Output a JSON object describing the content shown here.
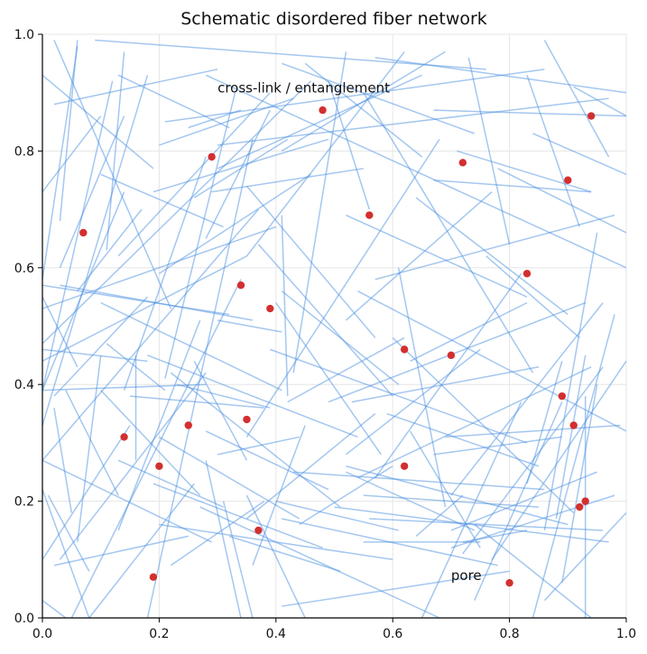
{
  "chart_data": {
    "type": "scatter",
    "title": "Schematic disordered fiber network",
    "xlabel": "",
    "ylabel": "",
    "xlim": [
      0,
      1
    ],
    "ylim": [
      0,
      1
    ],
    "grid": true,
    "x_ticks": [
      "0.0",
      "0.2",
      "0.4",
      "0.6",
      "0.8",
      "1.0"
    ],
    "y_ticks": [
      "0.0",
      "0.2",
      "0.4",
      "0.6",
      "0.8",
      "1.0"
    ],
    "annotations": [
      {
        "text": "cross-link / entanglement",
        "x": 0.3,
        "y": 0.9
      },
      {
        "text": "pore",
        "x": 0.7,
        "y": 0.065
      }
    ],
    "fiber_color": "#4a90e2",
    "node_color": "#d32f2f",
    "fibers": [
      [
        0.02,
        0.99,
        0.22,
        0.53
      ],
      [
        0.09,
        0.99,
        0.76,
        0.94
      ],
      [
        0.0,
        0.93,
        0.19,
        0.77
      ],
      [
        0.1,
        0.86,
        0.0,
        0.73
      ],
      [
        0.13,
        0.93,
        0.32,
        0.84
      ],
      [
        0.02,
        0.88,
        0.3,
        0.94
      ],
      [
        0.06,
        0.98,
        0.0,
        0.58
      ],
      [
        0.18,
        0.0,
        0.36,
        0.82
      ],
      [
        0.03,
        0.68,
        0.06,
        0.99
      ],
      [
        0.57,
        0.96,
        1.0,
        0.9
      ],
      [
        0.3,
        0.81,
        0.97,
        0.89
      ],
      [
        0.21,
        0.85,
        0.86,
        0.94
      ],
      [
        0.28,
        0.93,
        1.0,
        0.6
      ],
      [
        0.2,
        0.81,
        0.43,
        0.89
      ],
      [
        0.19,
        0.73,
        0.49,
        0.82
      ],
      [
        0.46,
        0.92,
        0.0,
        0.47
      ],
      [
        0.12,
        0.92,
        0.0,
        0.39
      ],
      [
        0.14,
        0.73,
        0.0,
        0.39
      ],
      [
        0.3,
        0.77,
        0.65,
        0.93
      ],
      [
        0.25,
        0.84,
        0.34,
        0.87
      ],
      [
        0.18,
        0.93,
        0.0,
        0.33
      ],
      [
        0.45,
        0.95,
        0.65,
        0.79
      ],
      [
        0.33,
        0.9,
        0.21,
        0.41
      ],
      [
        0.35,
        0.74,
        0.57,
        0.48
      ],
      [
        0.41,
        0.95,
        0.74,
        0.83
      ],
      [
        0.55,
        0.9,
        0.84,
        0.42
      ],
      [
        0.67,
        0.87,
        1.0,
        0.86
      ],
      [
        0.71,
        0.8,
        0.94,
        0.73
      ],
      [
        0.67,
        0.75,
        0.94,
        0.73
      ],
      [
        0.49,
        0.92,
        0.56,
        0.7
      ],
      [
        0.28,
        0.79,
        0.14,
        0.39
      ],
      [
        0.1,
        0.76,
        0.31,
        0.67
      ],
      [
        0.41,
        0.8,
        0.69,
        0.97
      ],
      [
        0.29,
        0.73,
        0.55,
        0.77
      ],
      [
        0.26,
        0.72,
        0.42,
        0.82
      ],
      [
        0.73,
        0.96,
        0.8,
        0.64
      ],
      [
        0.83,
        0.93,
        0.92,
        0.67
      ],
      [
        0.54,
        0.56,
        1.0,
        0.32
      ],
      [
        0.52,
        0.69,
        0.83,
        0.55
      ],
      [
        0.37,
        0.7,
        0.0,
        0.27
      ],
      [
        0.28,
        0.65,
        0.39,
        0.87
      ],
      [
        0.14,
        0.86,
        0.03,
        0.6
      ],
      [
        0.06,
        0.56,
        0.17,
        0.7
      ],
      [
        0.43,
        0.42,
        0.52,
        0.97
      ],
      [
        0.57,
        0.58,
        0.98,
        0.69
      ],
      [
        0.64,
        0.72,
        0.9,
        0.52
      ],
      [
        0.62,
        0.97,
        0.35,
        0.62
      ],
      [
        0.37,
        0.64,
        0.6,
        0.38
      ],
      [
        0.41,
        0.56,
        0.61,
        0.4
      ],
      [
        0.76,
        0.62,
        0.92,
        0.48
      ],
      [
        0.84,
        0.83,
        1.0,
        0.76
      ],
      [
        0.86,
        0.99,
        0.97,
        0.79
      ],
      [
        0.91,
        0.91,
        1.0,
        0.86
      ],
      [
        0.78,
        0.77,
        1.0,
        0.66
      ],
      [
        0.35,
        0.31,
        0.68,
        0.82
      ],
      [
        0.2,
        0.59,
        0.46,
        0.76
      ],
      [
        0.03,
        0.57,
        0.36,
        0.51
      ],
      [
        0.13,
        0.62,
        0.39,
        0.9
      ],
      [
        0.14,
        0.97,
        0.11,
        0.63
      ],
      [
        0.1,
        0.54,
        0.41,
        0.39
      ],
      [
        0.0,
        0.53,
        0.4,
        0.67
      ],
      [
        0.0,
        0.46,
        0.18,
        0.44
      ],
      [
        0.0,
        0.39,
        0.28,
        0.4
      ],
      [
        0.0,
        0.44,
        0.35,
        0.62
      ],
      [
        0.0,
        0.57,
        0.32,
        0.52
      ],
      [
        0.11,
        0.47,
        0.21,
        0.39
      ],
      [
        0.06,
        0.13,
        0.1,
        0.45
      ],
      [
        0.08,
        0.0,
        0.26,
        0.23
      ],
      [
        0.0,
        0.27,
        0.29,
        0.13
      ],
      [
        0.0,
        0.1,
        0.15,
        0.33
      ],
      [
        0.03,
        0.1,
        0.28,
        0.42
      ],
      [
        0.02,
        0.36,
        0.05,
        0.18
      ],
      [
        0.08,
        0.08,
        0.01,
        0.21
      ],
      [
        0.02,
        0.09,
        0.25,
        0.14
      ],
      [
        0.2,
        0.31,
        0.44,
        0.17
      ],
      [
        0.19,
        0.23,
        0.48,
        0.12
      ],
      [
        0.13,
        0.21,
        0.04,
        0.39
      ],
      [
        0.16,
        0.45,
        0.16,
        0.27
      ],
      [
        0.18,
        0.45,
        0.54,
        0.31
      ],
      [
        0.13,
        0.27,
        0.31,
        0.19
      ],
      [
        0.05,
        0.0,
        0.34,
        0.58
      ],
      [
        0.13,
        0.15,
        0.27,
        0.51
      ],
      [
        0.0,
        0.22,
        0.08,
        0.0
      ],
      [
        0.0,
        0.03,
        0.04,
        0.0
      ],
      [
        0.15,
        0.38,
        0.38,
        0.36
      ],
      [
        0.23,
        0.4,
        0.39,
        0.36
      ],
      [
        0.22,
        0.42,
        0.51,
        0.19
      ],
      [
        0.26,
        0.44,
        0.35,
        0.27
      ],
      [
        0.3,
        0.51,
        0.41,
        0.49
      ],
      [
        0.41,
        0.69,
        0.42,
        0.38
      ],
      [
        0.28,
        0.32,
        0.49,
        0.22
      ],
      [
        0.39,
        0.46,
        0.83,
        0.3
      ],
      [
        0.3,
        0.28,
        0.44,
        0.31
      ],
      [
        0.4,
        0.54,
        0.58,
        0.28
      ],
      [
        0.42,
        0.37,
        0.62,
        0.48
      ],
      [
        0.52,
        0.51,
        0.77,
        0.73
      ],
      [
        0.61,
        0.6,
        0.69,
        0.19
      ],
      [
        0.57,
        0.24,
        0.82,
        0.59
      ],
      [
        0.52,
        0.28,
        0.75,
        0.46
      ],
      [
        0.53,
        0.37,
        0.85,
        0.43
      ],
      [
        0.54,
        0.24,
        0.94,
        0.43
      ],
      [
        0.6,
        0.48,
        0.91,
        0.18
      ],
      [
        0.63,
        0.44,
        0.83,
        0.54
      ],
      [
        0.63,
        0.32,
        0.75,
        0.12
      ],
      [
        0.49,
        0.37,
        0.93,
        0.54
      ],
      [
        0.69,
        0.31,
        0.99,
        0.33
      ],
      [
        0.72,
        0.11,
        0.96,
        0.43
      ],
      [
        0.77,
        0.1,
        1.0,
        0.44
      ],
      [
        0.7,
        0.21,
        0.96,
        0.54
      ],
      [
        0.7,
        0.15,
        0.95,
        0.25
      ],
      [
        0.67,
        0.28,
        0.89,
        0.31
      ],
      [
        0.7,
        0.12,
        0.98,
        0.21
      ],
      [
        0.84,
        0.0,
        0.98,
        0.52
      ],
      [
        0.83,
        0.23,
        0.89,
        0.44
      ],
      [
        0.86,
        0.15,
        0.95,
        0.66
      ],
      [
        0.89,
        0.06,
        0.95,
        0.4
      ],
      [
        0.93,
        0.38,
        0.93,
        0.0
      ],
      [
        0.86,
        0.03,
        1.0,
        0.18
      ],
      [
        0.88,
        0.17,
        0.93,
        0.45
      ],
      [
        0.74,
        0.16,
        0.94,
        0.0
      ],
      [
        0.72,
        0.13,
        0.83,
        0.15
      ],
      [
        0.4,
        0.2,
        0.61,
        0.15
      ],
      [
        0.41,
        0.17,
        0.78,
        0.09
      ],
      [
        0.32,
        0.14,
        0.51,
        0.08
      ],
      [
        0.27,
        0.19,
        0.68,
        0.0
      ],
      [
        0.31,
        0.2,
        0.36,
        0.0
      ],
      [
        0.5,
        0.19,
        0.97,
        0.13
      ],
      [
        0.2,
        0.16,
        0.6,
        0.1
      ],
      [
        0.35,
        0.21,
        0.45,
        0.0
      ],
      [
        0.28,
        0.27,
        0.34,
        0.0
      ],
      [
        0.55,
        0.21,
        0.85,
        0.19
      ],
      [
        0.56,
        0.17,
        0.96,
        0.15
      ],
      [
        0.59,
        0.35,
        0.85,
        0.26
      ],
      [
        0.52,
        0.26,
        0.9,
        0.16
      ],
      [
        0.43,
        0.25,
        0.86,
        0.22
      ],
      [
        0.64,
        0.14,
        0.72,
        0.21
      ],
      [
        0.74,
        0.03,
        0.89,
        0.37
      ],
      [
        0.35,
        0.17,
        0.57,
        0.35
      ],
      [
        0.36,
        0.09,
        0.45,
        0.33
      ],
      [
        0.41,
        0.02,
        0.8,
        0.08
      ],
      [
        0.65,
        0.0,
        0.82,
        0.37
      ],
      [
        0.55,
        0.13,
        0.75,
        0.13
      ],
      [
        0.52,
        0.25,
        0.74,
        0.15
      ],
      [
        0.44,
        0.16,
        0.6,
        0.26
      ],
      [
        0.0,
        0.55,
        0.06,
        0.43
      ],
      [
        0.18,
        0.55,
        0.02,
        0.38
      ],
      [
        0.1,
        0.39,
        0.27,
        0.21
      ],
      [
        0.22,
        0.09,
        0.38,
        0.2
      ]
    ],
    "nodes": [
      {
        "x": 0.07,
        "y": 0.66
      },
      {
        "x": 0.29,
        "y": 0.79
      },
      {
        "x": 0.48,
        "y": 0.87
      },
      {
        "x": 0.56,
        "y": 0.69
      },
      {
        "x": 0.72,
        "y": 0.78
      },
      {
        "x": 0.94,
        "y": 0.86
      },
      {
        "x": 0.9,
        "y": 0.75
      },
      {
        "x": 0.83,
        "y": 0.59
      },
      {
        "x": 0.34,
        "y": 0.57
      },
      {
        "x": 0.39,
        "y": 0.53
      },
      {
        "x": 0.62,
        "y": 0.46
      },
      {
        "x": 0.7,
        "y": 0.45
      },
      {
        "x": 0.89,
        "y": 0.38
      },
      {
        "x": 0.91,
        "y": 0.33
      },
      {
        "x": 0.14,
        "y": 0.31
      },
      {
        "x": 0.25,
        "y": 0.33
      },
      {
        "x": 0.35,
        "y": 0.34
      },
      {
        "x": 0.2,
        "y": 0.26
      },
      {
        "x": 0.62,
        "y": 0.26
      },
      {
        "x": 0.92,
        "y": 0.19
      },
      {
        "x": 0.93,
        "y": 0.2
      },
      {
        "x": 0.37,
        "y": 0.15
      },
      {
        "x": 0.19,
        "y": 0.07
      },
      {
        "x": 0.8,
        "y": 0.06
      }
    ]
  }
}
